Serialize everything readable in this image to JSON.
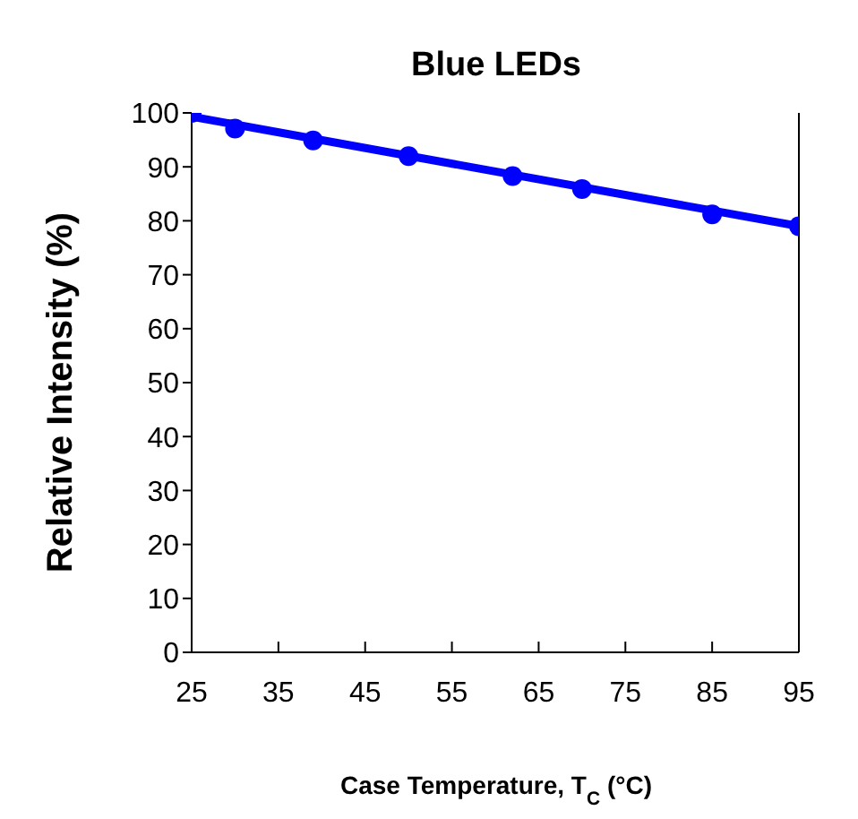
{
  "chart_data": {
    "type": "scatter",
    "title": "Blue LEDs",
    "xlabel": "Case Temperature, T$_{C}$ (°C)",
    "ylabel": "Relative Intensity (%)",
    "x": [
      25,
      30,
      39,
      50,
      62,
      70,
      85,
      95
    ],
    "series": [
      {
        "type": "line",
        "color": "#0000ff",
        "x": [
          25,
          95
        ],
        "values": [
          99.3,
          79
        ],
        "marker": "none"
      },
      {
        "color": "#0000ff",
        "values": [
          100,
          97.1,
          94.9,
          92,
          88.3,
          85.9,
          81.2,
          79
        ]
      }
    ],
    "xlim": [
      25,
      95
    ],
    "xticks": [
      25,
      35,
      45,
      55,
      65,
      75,
      85,
      95
    ],
    "ylim": [
      0,
      100
    ],
    "yticks": [
      0,
      10,
      20,
      30,
      40,
      50,
      60,
      70,
      80,
      90,
      100
    ],
    "marker": "circle",
    "line_style": "solid",
    "grid": false,
    "legend": false
  }
}
